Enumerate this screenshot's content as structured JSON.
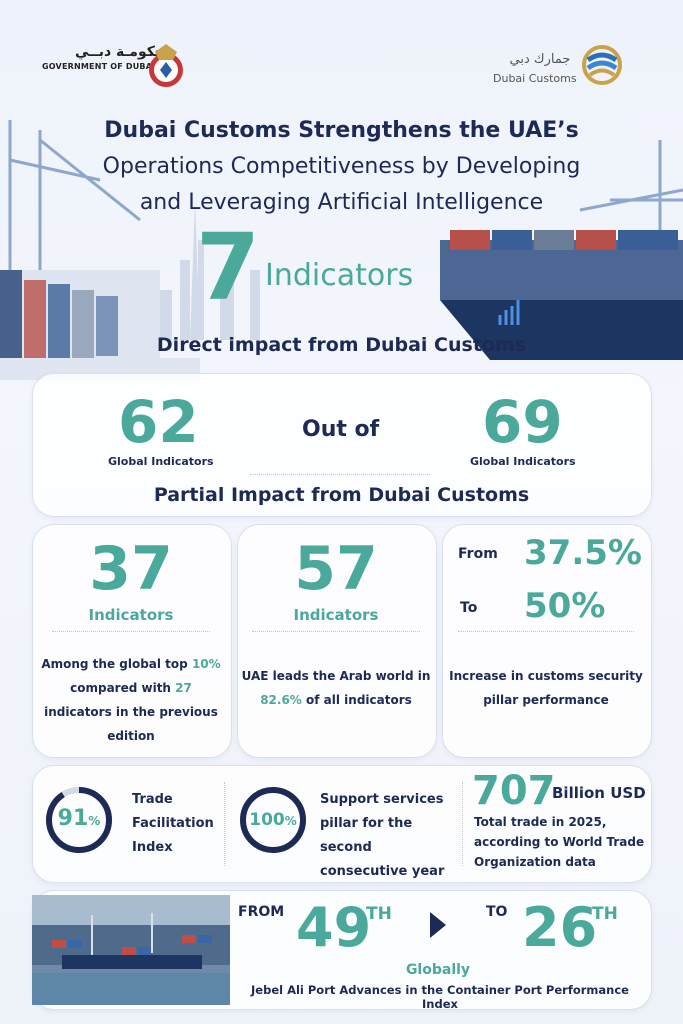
{
  "header": {
    "gov_arabic": "حكومـة دبــي",
    "gov_english": "GOVERNMENT OF DUBAI",
    "customs_arabic": "جمارك دبي",
    "customs_english": "Dubai Customs"
  },
  "title": {
    "line1": "Dubai Customs Strengthens the UAE’s",
    "line2": "Operations Competitiveness by Developing",
    "line3": "and Leveraging Artificial Intelligence"
  },
  "headline": {
    "number": "7",
    "label": "Indicators"
  },
  "direct_impact": {
    "heading": "Direct impact from Dubai Customs",
    "left_value": "62",
    "left_label": "Global Indicators",
    "connector": "Out of",
    "right_value": "69",
    "right_label": "Global Indicators"
  },
  "partial_impact": {
    "heading": "Partial Impact from Dubai Customs",
    "card1": {
      "value": "37",
      "label": "Indicators",
      "desc_a": "Among the global top ",
      "desc_hl1": "10%",
      "desc_b": " compared with ",
      "desc_hl2": "27",
      "desc_c": " indicators in the previous edition"
    },
    "card2": {
      "value": "57",
      "label": "Indicators",
      "desc_a": "UAE leads the Arab world in ",
      "desc_hl": "82.6%",
      "desc_b": " of all indicators"
    },
    "card3": {
      "from_label": "From",
      "from_value": "37.5%",
      "to_label": "To",
      "to_value": "50%",
      "desc": "Increase in customs security pillar performance"
    }
  },
  "stats_row": {
    "trade_facilitation": {
      "value": "91",
      "suffix": "%",
      "percent": 91,
      "desc": "Trade Facilitation Index"
    },
    "support_services": {
      "value": "100",
      "suffix": "%",
      "percent": 100,
      "desc": "Support services pillar for the second consecutive year"
    },
    "trade": {
      "value": "707",
      "unit": "Billion USD",
      "desc": "Total trade in 2025, according to World Trade Organization data"
    }
  },
  "port": {
    "from_label": "FROM",
    "from_value": "49",
    "from_suffix": "TH",
    "to_label": "TO",
    "to_value": "26",
    "to_suffix": "TH",
    "globally": "Globally",
    "desc": "Jebel Ali Port Advances in the Container Port Performance Index"
  },
  "colors": {
    "accent": "#4aa99b",
    "navy": "#1c2a55"
  }
}
